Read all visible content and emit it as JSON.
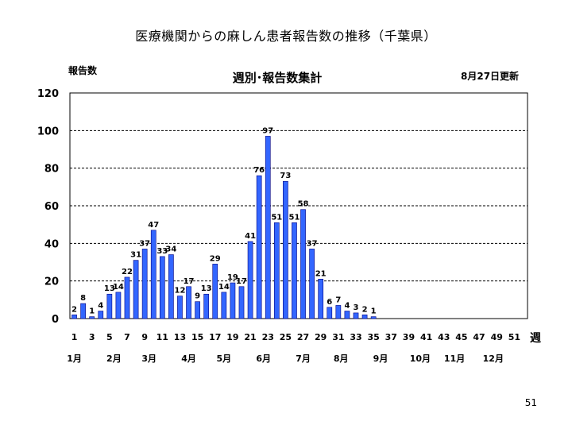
{
  "slide": {
    "title": "医療機関からの麻しん患者報告数の推移（千葉県）",
    "page_number": "51"
  },
  "chart_data": {
    "type": "bar",
    "title": "週別･報告数集計",
    "ylabel": "報告数",
    "xlabel": "週",
    "update_note": "8月27日更新",
    "ylim": [
      0,
      120
    ],
    "yticks": [
      0,
      20,
      40,
      60,
      80,
      100,
      120
    ],
    "grid": "horizontal dashed",
    "bar_color": "#3366ff",
    "bar_edge_color": "#000080",
    "x": [
      1,
      2,
      3,
      4,
      5,
      6,
      7,
      8,
      9,
      10,
      11,
      12,
      13,
      14,
      15,
      16,
      17,
      18,
      19,
      20,
      21,
      22,
      23,
      24,
      25,
      26,
      27,
      28,
      29,
      30,
      31,
      32,
      33,
      34,
      35,
      36,
      37,
      38,
      39,
      40,
      41,
      42,
      43,
      44,
      45,
      46,
      47,
      48,
      49,
      50,
      51,
      52
    ],
    "values": [
      2,
      8,
      1,
      4,
      13,
      14,
      22,
      31,
      37,
      47,
      33,
      34,
      12,
      17,
      9,
      13,
      29,
      14,
      19,
      17,
      41,
      76,
      97,
      51,
      73,
      51,
      58,
      37,
      21,
      6,
      7,
      4,
      3,
      2,
      1,
      0,
      0,
      0,
      0,
      0,
      0,
      0,
      0,
      0,
      0,
      0,
      0,
      0,
      0,
      0,
      0,
      0
    ],
    "labels": [
      "2",
      "8",
      "1",
      "4",
      "13",
      "14",
      "22",
      "31",
      "37",
      "47",
      "33",
      "34",
      "12",
      "17",
      "9",
      "13",
      "29",
      "14",
      "19",
      "17",
      "41",
      "76",
      "97",
      "51",
      "73",
      "51",
      "58",
      "37",
      "21",
      "6",
      "7",
      "4",
      "3",
      "2",
      "1",
      "",
      "",
      "",
      "",
      "",
      "",
      "",
      "",
      "",
      "",
      "",
      "",
      "",
      "",
      "",
      "",
      ""
    ],
    "xtick_labels": [
      "1",
      "3",
      "5",
      "7",
      "9",
      "11",
      "13",
      "15",
      "17",
      "19",
      "21",
      "23",
      "25",
      "27",
      "29",
      "31",
      "33",
      "35",
      "37",
      "39",
      "41",
      "43",
      "45",
      "47",
      "49",
      "51"
    ],
    "month_labels": [
      {
        "label": "1月",
        "week": 1
      },
      {
        "label": "2月",
        "week": 5.5
      },
      {
        "label": "3月",
        "week": 9.5
      },
      {
        "label": "4月",
        "week": 14
      },
      {
        "label": "5月",
        "week": 18
      },
      {
        "label": "6月",
        "week": 22.5
      },
      {
        "label": "7月",
        "week": 27
      },
      {
        "label": "8月",
        "week": 31.3
      },
      {
        "label": "9月",
        "week": 35.8
      },
      {
        "label": "10月",
        "week": 40.3
      },
      {
        "label": "11月",
        "week": 44.2
      },
      {
        "label": "12月",
        "week": 48.6
      }
    ]
  }
}
